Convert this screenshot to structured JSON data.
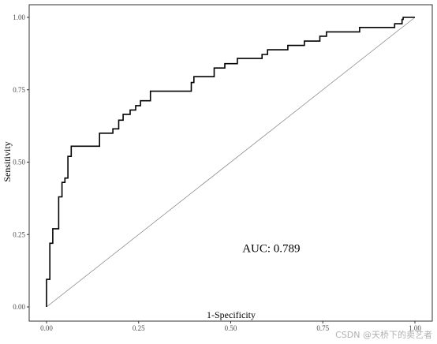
{
  "chart_data": {
    "type": "line",
    "title": "",
    "xlabel": "1-Specificity",
    "ylabel": "Sensitivity",
    "xlim": [
      0,
      1
    ],
    "ylim": [
      0,
      1
    ],
    "x_ticks": [
      0,
      0.25,
      0.5,
      0.75,
      1
    ],
    "x_tick_labels": [
      "0.00",
      "0.25",
      "0.50",
      "0.75",
      "1.00"
    ],
    "y_ticks": [
      0,
      0.25,
      0.5,
      0.75,
      1
    ],
    "y_tick_labels": [
      "0.00",
      "0.25",
      "0.50",
      "0.75",
      "1.00"
    ],
    "grid": false,
    "series": [
      {
        "kind": "roc-step",
        "color": "#000000",
        "points": [
          [
            0.0,
            0.0
          ],
          [
            0.0,
            0.095
          ],
          [
            0.009,
            0.095
          ],
          [
            0.009,
            0.22
          ],
          [
            0.017,
            0.22
          ],
          [
            0.017,
            0.27
          ],
          [
            0.033,
            0.27
          ],
          [
            0.033,
            0.38
          ],
          [
            0.042,
            0.38
          ],
          [
            0.042,
            0.43
          ],
          [
            0.05,
            0.43
          ],
          [
            0.05,
            0.445
          ],
          [
            0.058,
            0.445
          ],
          [
            0.058,
            0.52
          ],
          [
            0.067,
            0.52
          ],
          [
            0.067,
            0.555
          ],
          [
            0.144,
            0.555
          ],
          [
            0.144,
            0.6
          ],
          [
            0.18,
            0.6
          ],
          [
            0.18,
            0.615
          ],
          [
            0.196,
            0.615
          ],
          [
            0.196,
            0.645
          ],
          [
            0.208,
            0.645
          ],
          [
            0.208,
            0.665
          ],
          [
            0.227,
            0.665
          ],
          [
            0.227,
            0.68
          ],
          [
            0.242,
            0.68
          ],
          [
            0.242,
            0.695
          ],
          [
            0.255,
            0.695
          ],
          [
            0.255,
            0.712
          ],
          [
            0.282,
            0.712
          ],
          [
            0.282,
            0.745
          ],
          [
            0.393,
            0.745
          ],
          [
            0.393,
            0.775
          ],
          [
            0.4,
            0.775
          ],
          [
            0.4,
            0.795
          ],
          [
            0.455,
            0.795
          ],
          [
            0.455,
            0.825
          ],
          [
            0.484,
            0.825
          ],
          [
            0.484,
            0.84
          ],
          [
            0.518,
            0.84
          ],
          [
            0.518,
            0.858
          ],
          [
            0.585,
            0.858
          ],
          [
            0.585,
            0.872
          ],
          [
            0.6,
            0.872
          ],
          [
            0.6,
            0.888
          ],
          [
            0.655,
            0.888
          ],
          [
            0.655,
            0.903
          ],
          [
            0.7,
            0.903
          ],
          [
            0.7,
            0.918
          ],
          [
            0.742,
            0.918
          ],
          [
            0.742,
            0.935
          ],
          [
            0.76,
            0.935
          ],
          [
            0.76,
            0.95
          ],
          [
            0.85,
            0.95
          ],
          [
            0.85,
            0.965
          ],
          [
            0.945,
            0.965
          ],
          [
            0.945,
            0.978
          ],
          [
            0.965,
            0.978
          ],
          [
            0.965,
            0.993
          ],
          [
            0.968,
            0.993
          ],
          [
            0.968,
            1.0
          ],
          [
            1.0,
            1.0
          ]
        ]
      },
      {
        "kind": "reference-diagonal",
        "color": "#808080",
        "points": [
          [
            0,
            0
          ],
          [
            1,
            1
          ]
        ]
      }
    ],
    "annotations": [
      {
        "text": "AUC: 0.789",
        "x": 0.61,
        "y": 0.19
      }
    ]
  },
  "watermark": {
    "text": "CSDN @天桥下的卖艺者",
    "color": "#b0b0b0"
  }
}
